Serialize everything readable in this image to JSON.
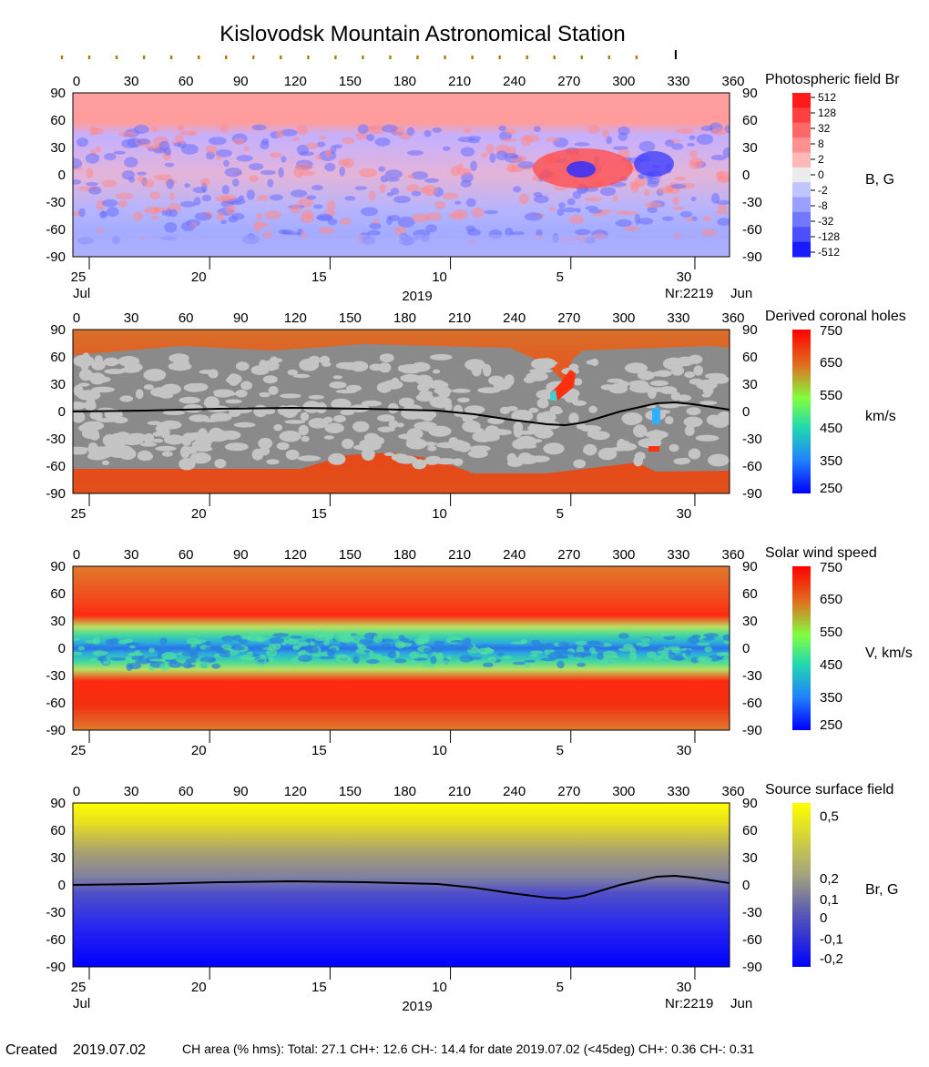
{
  "title": "Kislovodsk Mountain Astronomical Station",
  "footer": {
    "created_label": "Created",
    "created_date": "2019.07.02",
    "ch_text": "CH area (% hms): Total: 27.1 CH+: 12.6   CH-: 14.4 for date 2019.07.02 (<45deg) CH+: 0.36    CH-: 0.31"
  },
  "top_ticks": {
    "rotation_marker_deg": 330,
    "tick_positions_deg": [
      -6,
      9,
      24,
      39,
      54,
      69,
      84,
      99,
      114,
      129,
      144,
      159,
      174,
      189,
      204,
      219,
      234,
      249,
      264,
      279,
      294,
      309
    ]
  },
  "bottom_axis": {
    "date_ticks": [
      {
        "label": "25",
        "deg": 9
      },
      {
        "label": "20",
        "deg": 75
      },
      {
        "label": "15",
        "deg": 141
      },
      {
        "label": "10",
        "deg": 207
      },
      {
        "label": "5",
        "deg": 273
      },
      {
        "label": "30",
        "deg": 341
      }
    ],
    "month_left": "Jul",
    "month_right": "Jun",
    "year": "2019",
    "rotation": "Nr:2219"
  },
  "chart_data": [
    {
      "type": "heatmap",
      "title": "Photospheric field Br",
      "unit_label": "B, G",
      "xlim": [
        0,
        360
      ],
      "ylim": [
        -90,
        90
      ],
      "x_ticks": [
        0,
        30,
        60,
        90,
        120,
        150,
        180,
        210,
        240,
        270,
        300,
        330,
        360
      ],
      "y_ticks": [
        90,
        60,
        30,
        0,
        -30,
        -60,
        -90
      ],
      "colorbar_ticks": [
        "512",
        "128",
        "32",
        "8",
        "2",
        "0",
        "-2",
        "-8",
        "-32",
        "-128",
        "-512"
      ],
      "colorbar_colors": [
        "#ff1a1a",
        "#ff4040",
        "#ff6868",
        "#ff9090",
        "#ffb8b8",
        "#ececec",
        "#c0c4ff",
        "#9aa0ff",
        "#7078ff",
        "#4a50ff",
        "#1a1aff"
      ]
    },
    {
      "type": "heatmap",
      "title": "Derived coronal holes",
      "unit_label": "km/s",
      "xlim": [
        0,
        360
      ],
      "ylim": [
        -90,
        90
      ],
      "x_ticks": [
        0,
        30,
        60,
        90,
        120,
        150,
        180,
        210,
        240,
        270,
        300,
        330,
        360
      ],
      "y_ticks": [
        90,
        60,
        30,
        0,
        -30,
        -60,
        -90
      ],
      "colorbar_ticks": [
        "750",
        "650",
        "550",
        "450",
        "350",
        "250"
      ],
      "neutral_line": {
        "x": [
          0,
          40,
          80,
          120,
          160,
          200,
          220,
          240,
          260,
          270,
          280,
          300,
          320,
          330,
          340,
          360
        ],
        "y": [
          0,
          1,
          3,
          4,
          3,
          1,
          -3,
          -9,
          -14,
          -15,
          -12,
          0,
          9,
          10,
          8,
          2
        ]
      }
    },
    {
      "type": "heatmap",
      "title": "Solar wind speed",
      "unit_label": "V, km/s",
      "xlim": [
        0,
        360
      ],
      "ylim": [
        -90,
        90
      ],
      "x_ticks": [
        0,
        30,
        60,
        90,
        120,
        150,
        180,
        210,
        240,
        270,
        300,
        330,
        360
      ],
      "y_ticks": [
        90,
        60,
        30,
        0,
        -30,
        -60,
        -90
      ],
      "colorbar_ticks": [
        "750",
        "650",
        "550",
        "450",
        "350",
        "250"
      ]
    },
    {
      "type": "heatmap",
      "title": "Source surface field",
      "unit_label": "Br, G",
      "xlim": [
        0,
        360
      ],
      "ylim": [
        -90,
        90
      ],
      "x_ticks": [
        0,
        30,
        60,
        90,
        120,
        150,
        180,
        210,
        240,
        270,
        300,
        330,
        360
      ],
      "y_ticks": [
        90,
        60,
        30,
        0,
        -30,
        -60,
        -90
      ],
      "colorbar_ticks": [
        "0,5",
        "0,2",
        "0,1",
        "0",
        "-0,1",
        "-0,2"
      ],
      "neutral_line": {
        "x": [
          0,
          40,
          80,
          120,
          160,
          200,
          220,
          240,
          260,
          270,
          280,
          300,
          320,
          330,
          340,
          360
        ],
        "y": [
          0,
          1,
          3,
          4,
          3,
          1,
          -3,
          -9,
          -14,
          -15,
          -12,
          0,
          9,
          10,
          8,
          2
        ]
      }
    }
  ]
}
